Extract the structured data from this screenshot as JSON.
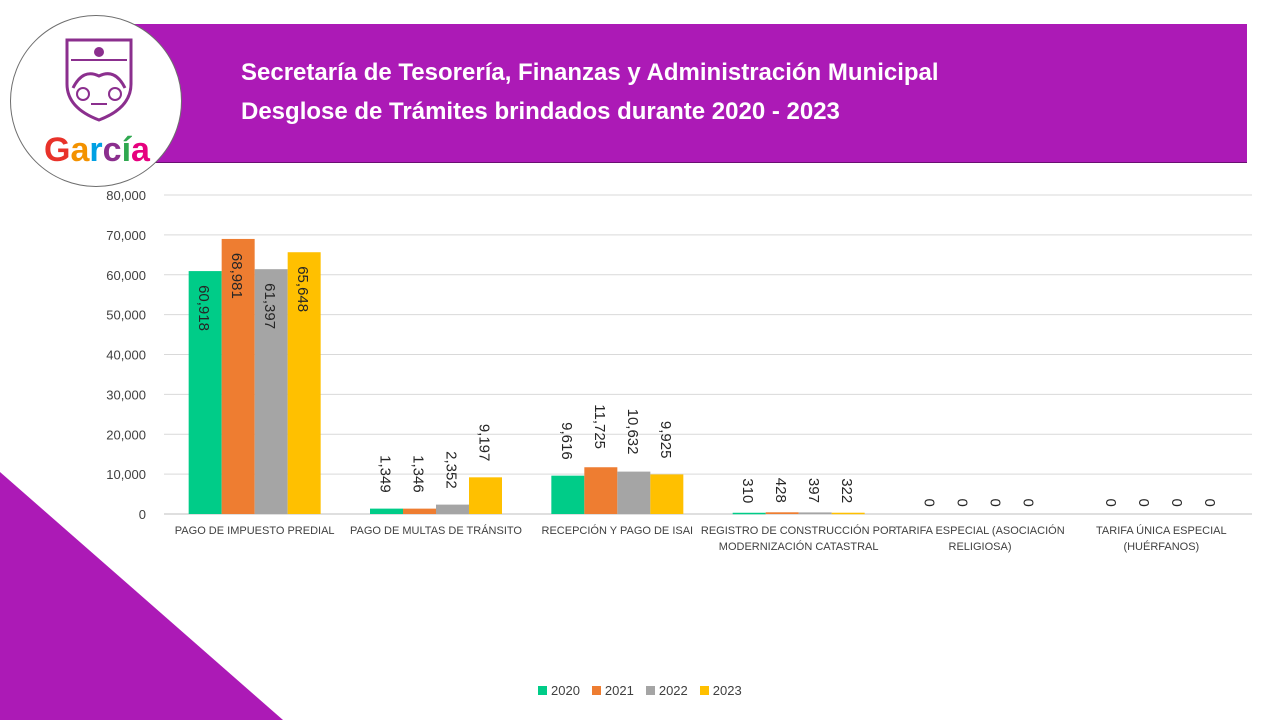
{
  "header": {
    "title_line1": "Secretaría de Tesorería, Finanzas y Administración Municipal",
    "title_line2": "Desglose de Trámites brindados durante 2020 - 2023"
  },
  "logo": {
    "text": "García"
  },
  "colors": {
    "banner": "#ac1ab6",
    "corner": "#ac1ab6",
    "series": [
      "#00cc88",
      "#ee7d31",
      "#a5a5a5",
      "#ffc000"
    ]
  },
  "chart_data": {
    "type": "bar",
    "categories": [
      [
        "PAGO DE IMPUESTO PREDIAL"
      ],
      [
        "PAGO DE MULTAS DE TRÁNSITO"
      ],
      [
        "RECEPCIÓN Y PAGO DE ISAI"
      ],
      [
        "REGISTRO DE CONSTRUCCIÓN POR",
        "MODERNIZACIÓN CATASTRAL"
      ],
      [
        "TARIFA ESPECIAL (ASOCIACIÓN",
        "RELIGIOSA)"
      ],
      [
        "TARIFA ÚNICA ESPECIAL",
        "(HUÉRFANOS)"
      ]
    ],
    "series": [
      {
        "name": "2020",
        "values": [
          60918,
          1349,
          9616,
          310,
          0,
          0
        ]
      },
      {
        "name": "2021",
        "values": [
          68981,
          1346,
          11725,
          428,
          0,
          0
        ]
      },
      {
        "name": "2022",
        "values": [
          61397,
          2352,
          10632,
          397,
          0,
          0
        ]
      },
      {
        "name": "2023",
        "values": [
          65648,
          9197,
          9925,
          322,
          0,
          0
        ]
      }
    ],
    "ylim": [
      0,
      80000
    ],
    "yticks": [
      "0",
      "10,000",
      "20,000",
      "30,000",
      "40,000",
      "50,000",
      "60,000",
      "70,000",
      "80,000"
    ],
    "grid": true,
    "legend": "bottom"
  }
}
